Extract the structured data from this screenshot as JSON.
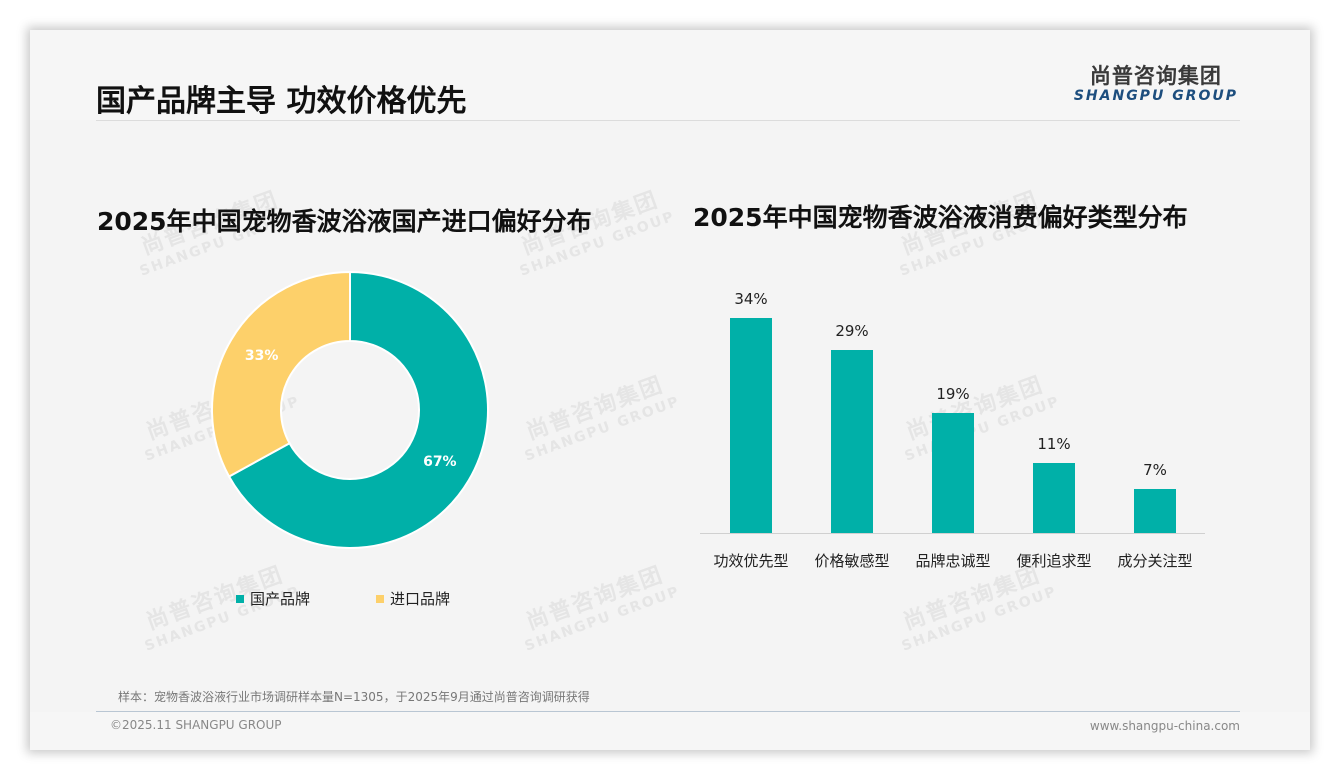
{
  "header": {
    "title": "国产品牌主导 功效价格优先",
    "logo_cn": "尚普咨询集团",
    "logo_en": "SHANGPU GROUP"
  },
  "watermark": {
    "cn": "尚普咨询集团",
    "en": "SHANGPU GROUP"
  },
  "left_chart": {
    "title": "2025年中国宠物香波浴液国产进口偏好分布",
    "segments": [
      {
        "label": "国产品牌",
        "value": 67,
        "display": "67%",
        "color": "#00b0a8"
      },
      {
        "label": "进口品牌",
        "value": 33,
        "display": "33%",
        "color": "#fdd06a"
      }
    ]
  },
  "right_chart": {
    "title": "2025年中国宠物香波浴液消费偏好类型分布",
    "bars": [
      {
        "label": "功效优先型",
        "value": 34,
        "display": "34%"
      },
      {
        "label": "价格敏感型",
        "value": 29,
        "display": "29%"
      },
      {
        "label": "品牌忠诚型",
        "value": 19,
        "display": "19%"
      },
      {
        "label": "便利追求型",
        "value": 11,
        "display": "11%"
      },
      {
        "label": "成分关注型",
        "value": 7,
        "display": "7%"
      }
    ],
    "bar_color": "#00b0a8"
  },
  "chart_data": [
    {
      "type": "pie",
      "title": "2025年中国宠物香波浴液国产进口偏好分布",
      "donut": true,
      "categories": [
        "国产品牌",
        "进口品牌"
      ],
      "values": [
        67,
        33
      ],
      "unit": "%",
      "colors": [
        "#00b0a8",
        "#fdd06a"
      ],
      "legend_position": "bottom"
    },
    {
      "type": "bar",
      "title": "2025年中国宠物香波浴液消费偏好类型分布",
      "categories": [
        "功效优先型",
        "价格敏感型",
        "品牌忠诚型",
        "便利追求型",
        "成分关注型"
      ],
      "values": [
        34,
        29,
        19,
        11,
        7
      ],
      "unit": "%",
      "xlabel": "",
      "ylabel": "",
      "ylim": [
        0,
        40
      ],
      "grid": false,
      "data_labels": true,
      "color": "#00b0a8"
    }
  ],
  "footer": {
    "note": "样本：宠物香波浴液行业市场调研样本量N=1305，于2025年9月通过尚普咨询调研获得",
    "copyright": "©2025.11 SHANGPU GROUP",
    "website": "www.shangpu-china.com"
  }
}
